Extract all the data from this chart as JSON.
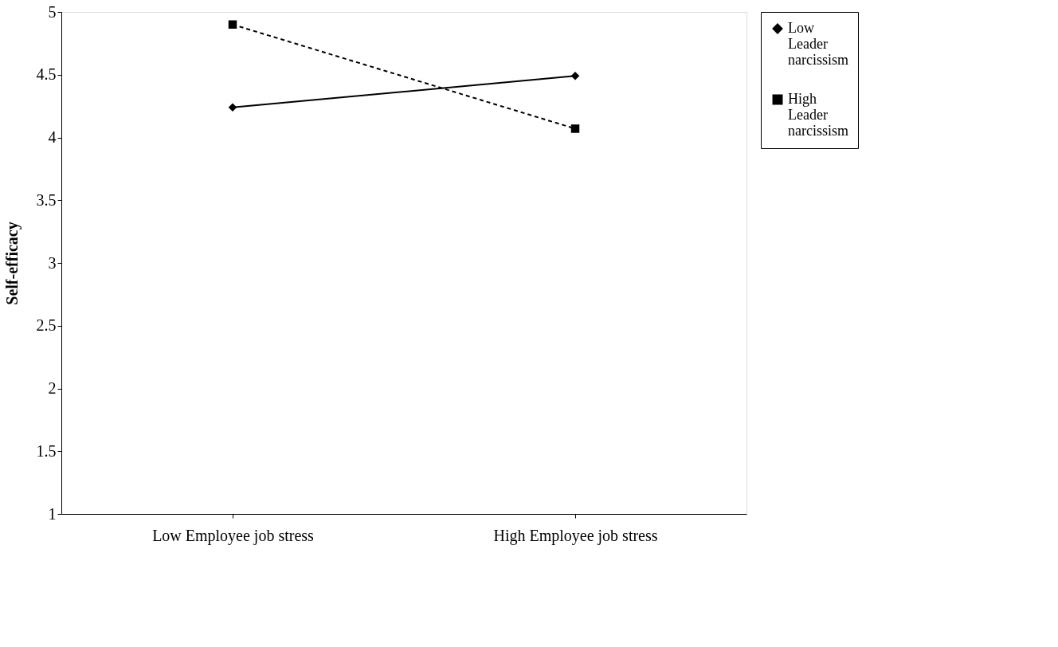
{
  "chart_data": {
    "type": "line",
    "ylabel": "Self-efficacy",
    "categories": [
      "Low Employee job stress",
      "High Employee job stress"
    ],
    "series": [
      {
        "name": "Low Leader narcissism",
        "color": "#000000",
        "values": [
          4.24,
          4.49
        ],
        "marker": "diamond",
        "line_style": "solid"
      },
      {
        "name": "High Leader narcissism",
        "color": "#000000",
        "values": [
          4.9,
          4.07
        ],
        "marker": "square",
        "line_style": "dashed"
      }
    ],
    "ylim": [
      1,
      5
    ],
    "yticks": [
      1,
      1.5,
      2,
      2.5,
      3,
      3.5,
      4,
      4.5,
      5
    ],
    "grid": false,
    "legend": "right"
  }
}
